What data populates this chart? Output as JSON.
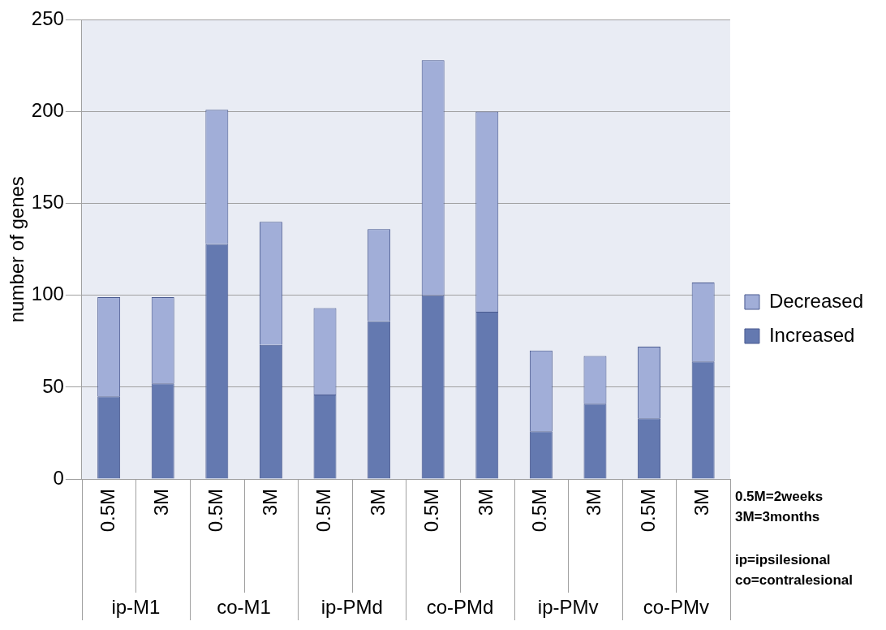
{
  "chart_data": {
    "type": "bar",
    "stacked": true,
    "ylabel": "number of genes",
    "categories": [
      "0.5M",
      "3M",
      "0.5M",
      "3M",
      "0.5M",
      "3M",
      "0.5M",
      "3M",
      "0.5M",
      "3M",
      "0.5M",
      "3M"
    ],
    "series": [
      {
        "name": "Increased",
        "color": "#6479b0",
        "values": [
          45,
          52,
          128,
          73,
          46,
          86,
          100,
          91,
          26,
          41,
          33,
          64
        ]
      },
      {
        "name": "Decreased",
        "color": "#a1aed8",
        "values": [
          54,
          47,
          73,
          67,
          47,
          50,
          128,
          109,
          44,
          26,
          39,
          43
        ]
      }
    ],
    "ylim": [
      0,
      250
    ],
    "yticks": [
      0,
      50,
      100,
      150,
      200,
      250
    ],
    "grid": "y",
    "legend": "right",
    "annotations": [
      "ip-M1",
      "co-M1",
      "ip-PMd",
      "co-PMd",
      "ip-PMv",
      "co-PMv",
      "0.5M=2weeks",
      "3M=3months",
      "ip=ipsilesional",
      "co=contralesional"
    ]
  }
}
